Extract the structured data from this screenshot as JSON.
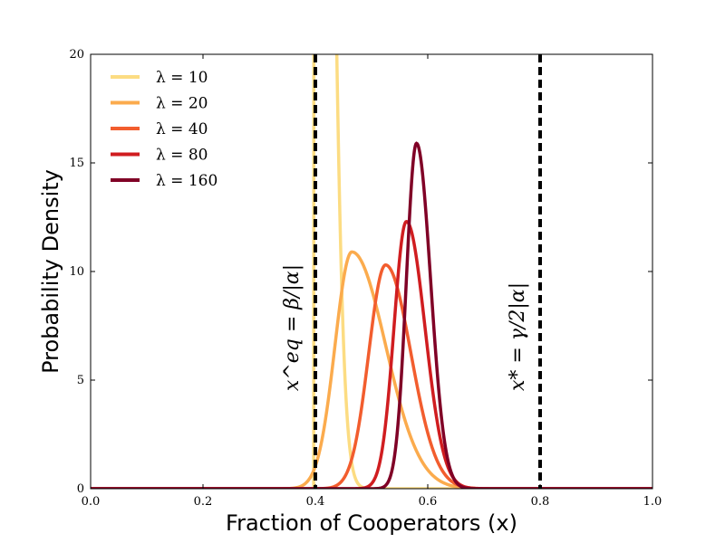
{
  "chart_data": {
    "type": "line",
    "xlabel": "Fraction of Cooperators (x)",
    "ylabel": "Probability Density",
    "xlim": [
      0.0,
      1.0
    ],
    "ylim": [
      0,
      20
    ],
    "xticks": [
      "0.0",
      "0.2",
      "0.4",
      "0.6",
      "0.8",
      "1.0"
    ],
    "yticks": [
      "0",
      "5",
      "10",
      "15",
      "20"
    ],
    "legend_position": "top-left",
    "grid": false,
    "series": [
      {
        "name": "λ = 10",
        "color": "#fcdc82",
        "peak_x": 0.4,
        "peak_y": 20.0
      },
      {
        "name": "λ = 20",
        "color": "#fbab4d",
        "peak_x": 0.465,
        "peak_y": 10.9
      },
      {
        "name": "λ = 40",
        "color": "#f25d2e",
        "peak_x": 0.525,
        "peak_y": 10.3
      },
      {
        "name": "λ = 80",
        "color": "#d01d20",
        "peak_x": 0.562,
        "peak_y": 12.3
      },
      {
        "name": "λ = 160",
        "color": "#800026",
        "peak_x": 0.58,
        "peak_y": 15.9
      }
    ],
    "vlines": [
      {
        "x": 0.4,
        "label": "x^eq = β/|α|",
        "color": "#000000",
        "style": "dashed"
      },
      {
        "x": 0.8,
        "label": "x* = γ/2|α|",
        "color": "#000000",
        "style": "dashed"
      }
    ]
  }
}
